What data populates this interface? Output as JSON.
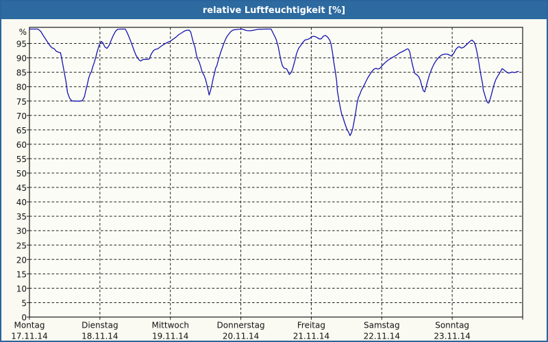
{
  "window": {
    "title": "relative Luftfeuchtigkeit [%]"
  },
  "colors": {
    "titlebar_bg": "#2d6aa0",
    "window_border": "#2a649c",
    "background": "#fafaf2",
    "plot_bg": "#fcfcf6",
    "line": "#1212b0",
    "grid": "#1a1a1a",
    "text": "#111111"
  },
  "chart_data": {
    "type": "line",
    "title": "relative Luftfeuchtigkeit [%]",
    "unit": "%",
    "ylim": [
      0,
      100
    ],
    "yticks": [
      0,
      5,
      10,
      15,
      20,
      25,
      30,
      35,
      40,
      45,
      50,
      55,
      60,
      65,
      70,
      75,
      80,
      85,
      90,
      95
    ],
    "y_top_label": "%",
    "grid": "dashed",
    "legend": "none",
    "x_axis": {
      "days": [
        {
          "label": "Montag",
          "date": "17.11.14"
        },
        {
          "label": "Dienstag",
          "date": "18.11.14"
        },
        {
          "label": "Mittwoch",
          "date": "19.11.14"
        },
        {
          "label": "Donnerstag",
          "date": "20.11.14"
        },
        {
          "label": "Freitag",
          "date": "21.11.14"
        },
        {
          "label": "Samstag",
          "date": "22.11.14"
        },
        {
          "label": "Sonntag",
          "date": "23.11.14"
        }
      ]
    },
    "series": [
      {
        "name": "relative Luftfeuchtigkeit",
        "unit": "%",
        "x_unit": "days_since_monday_0h",
        "points": [
          [
            0,
            100
          ],
          [
            0.12,
            100
          ],
          [
            0.16,
            99.2
          ],
          [
            0.2,
            97.6
          ],
          [
            0.24,
            96.1
          ],
          [
            0.27,
            95
          ],
          [
            0.29,
            94.3
          ],
          [
            0.32,
            93.5
          ],
          [
            0.35,
            93.2
          ],
          [
            0.38,
            92.3
          ],
          [
            0.42,
            91.9
          ],
          [
            0.44,
            91.8
          ],
          [
            0.46,
            89.5
          ],
          [
            0.49,
            85.5
          ],
          [
            0.52,
            81.5
          ],
          [
            0.54,
            78
          ],
          [
            0.57,
            76
          ],
          [
            0.6,
            75.1
          ],
          [
            0.63,
            75
          ],
          [
            0.67,
            75
          ],
          [
            0.71,
            75
          ],
          [
            0.75,
            75.1
          ],
          [
            0.78,
            76.5
          ],
          [
            0.8,
            78.7
          ],
          [
            0.82,
            80.6
          ],
          [
            0.84,
            82.9
          ],
          [
            0.86,
            84.4
          ],
          [
            0.88,
            85.3
          ],
          [
            0.9,
            87
          ],
          [
            0.92,
            88.4
          ],
          [
            0.94,
            90.1
          ],
          [
            0.96,
            92
          ],
          [
            0.99,
            94.4
          ],
          [
            1.02,
            95.7
          ],
          [
            1.04,
            95.3
          ],
          [
            1.07,
            93.8
          ],
          [
            1.1,
            93.3
          ],
          [
            1.13,
            94.3
          ],
          [
            1.16,
            96.1
          ],
          [
            1.19,
            97.8
          ],
          [
            1.22,
            99.2
          ],
          [
            1.25,
            99.9
          ],
          [
            1.3,
            100
          ],
          [
            1.36,
            100
          ],
          [
            1.39,
            98.6
          ],
          [
            1.42,
            96.8
          ],
          [
            1.45,
            95
          ],
          [
            1.48,
            92.9
          ],
          [
            1.51,
            91
          ],
          [
            1.54,
            89.8
          ],
          [
            1.56,
            89.2
          ],
          [
            1.58,
            88.9
          ],
          [
            1.59,
            89.1
          ],
          [
            1.62,
            89.5
          ],
          [
            1.66,
            89.5
          ],
          [
            1.7,
            89.6
          ],
          [
            1.73,
            91.4
          ],
          [
            1.76,
            92.5
          ],
          [
            1.79,
            93
          ],
          [
            1.82,
            93.1
          ],
          [
            1.85,
            93.7
          ],
          [
            1.89,
            94.4
          ],
          [
            1.93,
            95
          ],
          [
            1.96,
            95.4
          ],
          [
            2,
            95.8
          ],
          [
            2.04,
            96.5
          ],
          [
            2.08,
            97.2
          ],
          [
            2.12,
            98.1
          ],
          [
            2.16,
            98.7
          ],
          [
            2.2,
            99.3
          ],
          [
            2.23,
            99.6
          ],
          [
            2.27,
            99.6
          ],
          [
            2.29,
            98.9
          ],
          [
            2.31,
            96.9
          ],
          [
            2.33,
            95
          ],
          [
            2.35,
            93.7
          ],
          [
            2.37,
            90.9
          ],
          [
            2.39,
            89.5
          ],
          [
            2.41,
            88.5
          ],
          [
            2.43,
            87
          ],
          [
            2.45,
            85.2
          ],
          [
            2.48,
            83.8
          ],
          [
            2.5,
            82.5
          ],
          [
            2.52,
            80.5
          ],
          [
            2.54,
            78.3
          ],
          [
            2.55,
            77.1
          ],
          [
            2.57,
            78.6
          ],
          [
            2.59,
            80.7
          ],
          [
            2.61,
            83.2
          ],
          [
            2.63,
            84.9
          ],
          [
            2.64,
            86.3
          ],
          [
            2.66,
            87.3
          ],
          [
            2.68,
            89.2
          ],
          [
            2.71,
            91.6
          ],
          [
            2.74,
            93.7
          ],
          [
            2.77,
            95.7
          ],
          [
            2.8,
            97.3
          ],
          [
            2.83,
            98.3
          ],
          [
            2.86,
            99.2
          ],
          [
            2.89,
            99.7
          ],
          [
            2.96,
            99.9
          ],
          [
            3.02,
            100
          ],
          [
            3.08,
            99.5
          ],
          [
            3.13,
            99.4
          ],
          [
            3.18,
            99.6
          ],
          [
            3.24,
            99.9
          ],
          [
            3.35,
            100
          ],
          [
            3.43,
            100
          ],
          [
            3.47,
            98
          ],
          [
            3.5,
            96.5
          ],
          [
            3.53,
            94
          ],
          [
            3.55,
            91.5
          ],
          [
            3.57,
            89
          ],
          [
            3.59,
            87.3
          ],
          [
            3.61,
            86.5
          ],
          [
            3.63,
            86.3
          ],
          [
            3.65,
            86.2
          ],
          [
            3.67,
            85.2
          ],
          [
            3.69,
            84.2
          ],
          [
            3.71,
            84.8
          ],
          [
            3.73,
            85.8
          ],
          [
            3.75,
            87.5
          ],
          [
            3.77,
            89.3
          ],
          [
            3.79,
            91.4
          ],
          [
            3.82,
            93.3
          ],
          [
            3.85,
            94.3
          ],
          [
            3.88,
            95.4
          ],
          [
            3.91,
            96.2
          ],
          [
            3.94,
            96.4
          ],
          [
            3.97,
            96.6
          ],
          [
            4,
            97.2
          ],
          [
            4.03,
            97.5
          ],
          [
            4.05,
            97.4
          ],
          [
            4.08,
            97.1
          ],
          [
            4.11,
            96.6
          ],
          [
            4.14,
            96.6
          ],
          [
            4.17,
            97.5
          ],
          [
            4.2,
            97.8
          ],
          [
            4.23,
            97.3
          ],
          [
            4.26,
            96.2
          ],
          [
            4.28,
            94.9
          ],
          [
            4.3,
            92
          ],
          [
            4.32,
            88.5
          ],
          [
            4.34,
            85.4
          ],
          [
            4.36,
            81.9
          ],
          [
            4.37,
            78.5
          ],
          [
            4.39,
            75.7
          ],
          [
            4.41,
            72.9
          ],
          [
            4.43,
            70.6
          ],
          [
            4.45,
            69.3
          ],
          [
            4.47,
            67.7
          ],
          [
            4.49,
            66.3
          ],
          [
            4.51,
            65
          ],
          [
            4.53,
            64.2
          ],
          [
            4.55,
            63
          ],
          [
            4.57,
            64
          ],
          [
            4.59,
            65.6
          ],
          [
            4.61,
            68.3
          ],
          [
            4.63,
            71
          ],
          [
            4.65,
            74.3
          ],
          [
            4.67,
            76.3
          ],
          [
            4.69,
            77.4
          ],
          [
            4.71,
            78.7
          ],
          [
            4.74,
            80
          ],
          [
            4.77,
            81.5
          ],
          [
            4.8,
            83
          ],
          [
            4.83,
            84.2
          ],
          [
            4.86,
            85.3
          ],
          [
            4.89,
            86.1
          ],
          [
            4.92,
            86.4
          ],
          [
            4.94,
            86.1
          ],
          [
            4.97,
            86.3
          ],
          [
            5.01,
            87.4
          ],
          [
            5.05,
            88.4
          ],
          [
            5.09,
            89.2
          ],
          [
            5.14,
            90
          ],
          [
            5.2,
            90.8
          ],
          [
            5.26,
            91.8
          ],
          [
            5.32,
            92.5
          ],
          [
            5.36,
            93.1
          ],
          [
            5.38,
            93
          ],
          [
            5.4,
            91.9
          ],
          [
            5.41,
            90.5
          ],
          [
            5.43,
            88.3
          ],
          [
            5.45,
            86.2
          ],
          [
            5.47,
            84.6
          ],
          [
            5.5,
            84.1
          ],
          [
            5.53,
            83.3
          ],
          [
            5.55,
            82
          ],
          [
            5.57,
            80.2
          ],
          [
            5.59,
            78.6
          ],
          [
            5.61,
            78.2
          ],
          [
            5.63,
            80
          ],
          [
            5.65,
            81.8
          ],
          [
            5.68,
            84.3
          ],
          [
            5.71,
            86.2
          ],
          [
            5.74,
            87.8
          ],
          [
            5.77,
            89
          ],
          [
            5.81,
            90.2
          ],
          [
            5.85,
            91
          ],
          [
            5.89,
            91.3
          ],
          [
            5.93,
            91.3
          ],
          [
            5.96,
            91
          ],
          [
            5.99,
            90.6
          ],
          [
            6.02,
            91.5
          ],
          [
            6.05,
            92.9
          ],
          [
            6.08,
            93.7
          ],
          [
            6.1,
            93.9
          ],
          [
            6.13,
            93.4
          ],
          [
            6.16,
            93.6
          ],
          [
            6.19,
            94.3
          ],
          [
            6.22,
            95
          ],
          [
            6.25,
            95.7
          ],
          [
            6.28,
            96.2
          ],
          [
            6.31,
            95.5
          ],
          [
            6.33,
            94.3
          ],
          [
            6.35,
            92.2
          ],
          [
            6.37,
            89.6
          ],
          [
            6.39,
            86.5
          ],
          [
            6.41,
            83.6
          ],
          [
            6.43,
            81.2
          ],
          [
            6.44,
            79
          ],
          [
            6.46,
            77.3
          ],
          [
            6.48,
            75.7
          ],
          [
            6.5,
            74.5
          ],
          [
            6.52,
            74.3
          ],
          [
            6.54,
            75.8
          ],
          [
            6.56,
            77.5
          ],
          [
            6.58,
            79.5
          ],
          [
            6.6,
            81.2
          ],
          [
            6.62,
            82.5
          ],
          [
            6.65,
            83.8
          ],
          [
            6.68,
            85
          ],
          [
            6.71,
            86.3
          ],
          [
            6.74,
            85.7
          ],
          [
            6.77,
            85.1
          ],
          [
            6.8,
            84.7
          ],
          [
            6.82,
            84.8
          ],
          [
            6.85,
            85.1
          ],
          [
            6.88,
            84.9
          ],
          [
            6.91,
            85.1
          ],
          [
            6.94,
            85.3
          ]
        ]
      }
    ]
  }
}
